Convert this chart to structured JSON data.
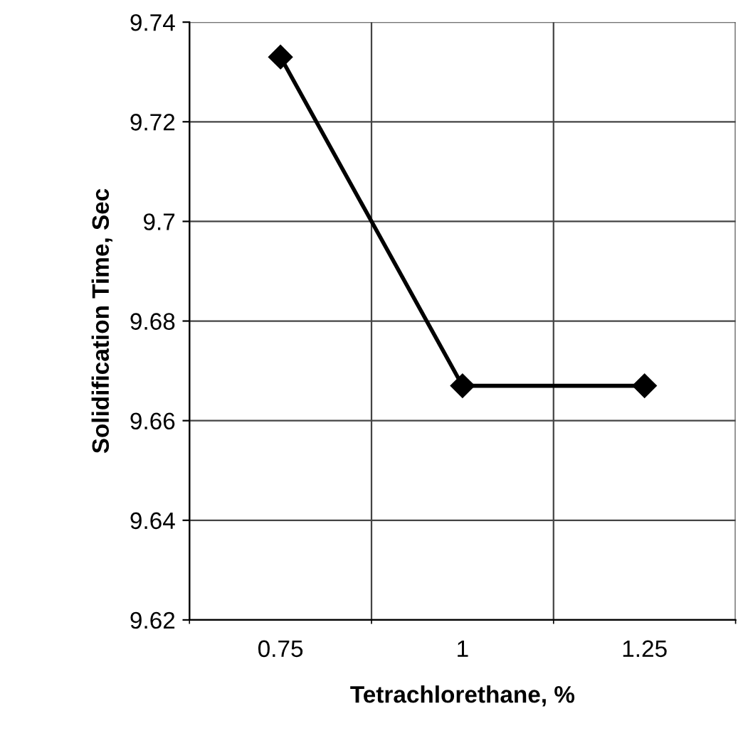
{
  "chart_data": {
    "type": "line",
    "xlabel": "Tetrachlorethane, %",
    "ylabel": "Solidification Time, Sec",
    "categories": [
      "0.75",
      "1",
      "1.25"
    ],
    "series": [
      {
        "color": "#000000",
        "values": [
          9.733,
          9.667,
          9.667
        ]
      }
    ],
    "ylim": [
      9.62,
      9.74
    ],
    "yticks": [
      9.62,
      9.64,
      9.66,
      9.68,
      9.7,
      9.72,
      9.74
    ],
    "grid": true,
    "marker": "diamond",
    "line_style": "solid",
    "legend": false
  }
}
